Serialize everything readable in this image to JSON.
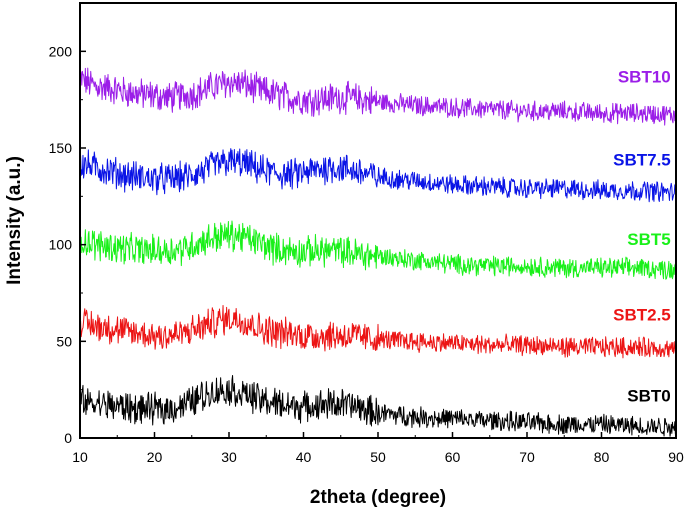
{
  "chart_data": {
    "type": "line",
    "title": "",
    "xlabel": "2theta (degree)",
    "ylabel": "Intensity (a.u.)",
    "xlim": [
      10,
      90
    ],
    "ylim": [
      0,
      225
    ],
    "xticks": [
      10,
      20,
      30,
      40,
      50,
      60,
      70,
      80,
      90
    ],
    "yticks": [
      0,
      50,
      100,
      150,
      200
    ],
    "grid": false,
    "legend": "inline labels on the right, above each trace",
    "series": [
      {
        "name": "SBT10",
        "color": "#9b1ee8",
        "label_at": [
          85,
          187
        ],
        "x": [
          10,
          12,
          14,
          16,
          18,
          20,
          22,
          24,
          26,
          28,
          30,
          32,
          34,
          36,
          38,
          40,
          42,
          44,
          46,
          48,
          50,
          55,
          60,
          65,
          70,
          75,
          80,
          85,
          90
        ],
        "y": [
          186,
          182,
          181,
          179,
          178,
          177,
          176,
          177,
          179,
          182,
          184,
          183,
          180,
          178,
          176,
          175,
          175,
          176,
          176,
          175,
          174,
          172,
          171,
          170,
          169,
          169,
          168,
          168,
          167
        ]
      },
      {
        "name": "SBT7.5",
        "color": "#0a14e6",
        "label_at": [
          85,
          144
        ],
        "x": [
          10,
          12,
          14,
          16,
          18,
          20,
          22,
          24,
          26,
          28,
          30,
          32,
          34,
          36,
          38,
          40,
          42,
          44,
          46,
          48,
          50,
          55,
          60,
          65,
          70,
          75,
          80,
          85,
          90
        ],
        "y": [
          142,
          140,
          138,
          136,
          135,
          134,
          134,
          135,
          137,
          141,
          143,
          142,
          139,
          137,
          136,
          137,
          139,
          140,
          139,
          137,
          135,
          133,
          131,
          130,
          129,
          129,
          128,
          128,
          127
        ]
      },
      {
        "name": "SBT5",
        "color": "#19f019",
        "label_at": [
          85,
          103
        ],
        "x": [
          10,
          12,
          14,
          16,
          18,
          20,
          22,
          24,
          26,
          28,
          30,
          32,
          34,
          36,
          38,
          40,
          42,
          44,
          46,
          48,
          50,
          55,
          60,
          65,
          70,
          75,
          80,
          85,
          90
        ],
        "y": [
          103,
          100,
          99,
          98,
          97,
          97,
          97,
          98,
          101,
          104,
          105,
          104,
          101,
          98,
          97,
          96,
          97,
          97,
          96,
          95,
          94,
          92,
          90,
          89,
          89,
          88,
          88,
          88,
          87
        ]
      },
      {
        "name": "SBT2.5",
        "color": "#ec1515",
        "label_at": [
          85,
          64
        ],
        "x": [
          10,
          12,
          14,
          16,
          18,
          20,
          22,
          24,
          26,
          28,
          30,
          32,
          34,
          36,
          38,
          40,
          42,
          44,
          46,
          48,
          50,
          55,
          60,
          65,
          70,
          75,
          80,
          85,
          90
        ],
        "y": [
          60,
          58,
          57,
          55,
          54,
          53,
          53,
          54,
          57,
          60,
          62,
          61,
          57,
          55,
          54,
          53,
          53,
          53,
          53,
          52,
          51,
          50,
          49,
          48,
          48,
          47,
          47,
          47,
          46
        ]
      },
      {
        "name": "SBT0",
        "color": "#000000",
        "label_at": [
          85,
          22
        ],
        "x": [
          10,
          12,
          14,
          16,
          18,
          20,
          22,
          24,
          26,
          28,
          30,
          32,
          34,
          36,
          38,
          40,
          42,
          44,
          46,
          48,
          50,
          55,
          60,
          65,
          70,
          75,
          80,
          85,
          90
        ],
        "y": [
          19,
          18,
          17,
          16,
          15,
          15,
          15,
          17,
          21,
          24,
          25,
          23,
          20,
          18,
          17,
          16,
          17,
          18,
          17,
          15,
          13,
          11,
          10,
          9,
          8,
          7,
          7,
          6,
          6
        ]
      }
    ]
  }
}
